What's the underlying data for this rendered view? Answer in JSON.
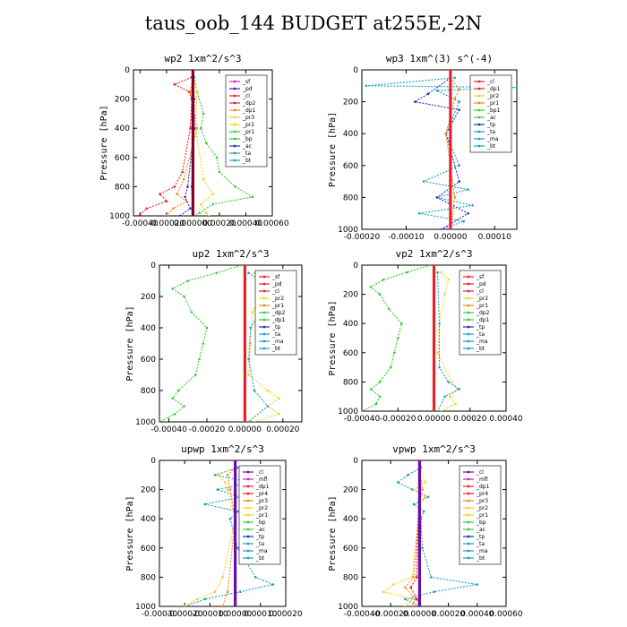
{
  "figure_title": "taus_oob_144  BUDGET at255E,-2N",
  "colors": {
    "magenta": "#cc22cc",
    "purple": "#6a0dad",
    "red": "#e8202a",
    "orange": "#f08a1c",
    "yellow": "#f5d020",
    "green": "#33cc33",
    "blue": "#2233bb",
    "cyan": "#1aa0c0",
    "black": "#111111",
    "dark": "#880022"
  },
  "chart_data": [
    {
      "type": "line",
      "title": "wp2   1xm^2/s^3",
      "ylabel": "Pressure [hPa]",
      "xlim": [
        -0.00045,
        0.0006
      ],
      "ylim": [
        1000,
        0
      ],
      "xticks": [
        -0.0004,
        -0.0002,
        0,
        0.0002,
        0.0004,
        0.0006
      ],
      "xtick_labels": [
        "-0.00040",
        "-0.00020",
        "0.000000",
        "0.00020",
        "0.00040",
        "0.00060"
      ],
      "yticks": [
        0,
        200,
        400,
        600,
        800,
        1000
      ],
      "legend": [
        "_sf",
        "_pd",
        "_cl",
        "_dp2",
        "_dp1",
        "_pr3",
        "_pr2",
        "_pr1",
        "_bp",
        "_ac",
        "_ta",
        "_bt"
      ],
      "legend_colors": [
        "magenta",
        "purple",
        "red",
        "red",
        "orange",
        "yellow",
        "yellow",
        "green",
        "green",
        "blue",
        "cyan",
        "cyan"
      ],
      "series": [
        {
          "name": "_pr1",
          "color": "green",
          "y": [
            50,
            150,
            300,
            400,
            500,
            600,
            700,
            800,
            870,
            920,
            980,
            1000
          ],
          "x": [
            1e-05,
            3e-05,
            8e-05,
            6e-05,
            0.0001,
            0.00018,
            0.0002,
            0.00032,
            0.00045,
            0.00015,
            5e-05,
            0
          ]
        },
        {
          "name": "_cl",
          "color": "red",
          "y": [
            50,
            100,
            150,
            200,
            400,
            700,
            800,
            850,
            900,
            950,
            990,
            1000
          ],
          "x": [
            -1e-05,
            -0.00014,
            -3e-05,
            -1e-05,
            -2e-05,
            -8e-05,
            -0.00014,
            -0.00025,
            -0.0002,
            -0.00035,
            -0.0004,
            -0.00042
          ]
        },
        {
          "name": "_dp1",
          "color": "orange",
          "y": [
            50,
            150,
            400,
            750,
            850,
            900,
            950,
            1000
          ],
          "x": [
            0,
            -2e-05,
            3e-05,
            -7e-05,
            -0.00012,
            -5e-05,
            -0.00015,
            -0.0002
          ]
        },
        {
          "name": "_pr2",
          "color": "yellow",
          "y": [
            50,
            150,
            400,
            750,
            850,
            920,
            980,
            1000
          ],
          "x": [
            0,
            3e-05,
            2e-05,
            8e-05,
            0.00015,
            6e-05,
            0.0001,
            0.00012
          ]
        },
        {
          "name": "_ac",
          "color": "blue",
          "y": [
            50,
            400,
            800,
            870,
            950,
            1000
          ],
          "x": [
            0,
            1e-05,
            -4e-05,
            -6e-05,
            -2e-05,
            -0.0001
          ]
        },
        {
          "name": "_pd",
          "color": "purple",
          "y": [
            0,
            200,
            400,
            600,
            800,
            1000
          ],
          "x": [
            0,
            1e-05,
            1e-05,
            0,
            -1e-05,
            0
          ]
        },
        {
          "name": "_bt",
          "color": "dark",
          "y": [
            0,
            1000
          ],
          "x": [
            0,
            0
          ]
        }
      ]
    },
    {
      "type": "line",
      "title": "wp3   1xm^(3) s^(-4)",
      "ylabel": "Pressure [hPa]",
      "xlim": [
        -0.0002,
        0.00015
      ],
      "ylim": [
        1000,
        0
      ],
      "xticks": [
        -0.0002,
        -0.0001,
        0,
        0.0001
      ],
      "xtick_labels": [
        "-0.00020",
        "-0.00010",
        "0.00000",
        "0.00010"
      ],
      "yticks": [
        0,
        200,
        400,
        600,
        800,
        1000
      ],
      "legend": [
        "_cl",
        "_dp1",
        "_pr2",
        "_pr1",
        "_bp1",
        "_ac",
        "_tp",
        "_ta",
        "_ma",
        "_bt"
      ],
      "legend_colors": [
        "red",
        "red",
        "yellow",
        "orange",
        "green",
        "green",
        "blue",
        "cyan",
        "cyan",
        "cyan"
      ],
      "series": [
        {
          "name": "_tp",
          "color": "cyan",
          "y": [
            50,
            100,
            110,
            130,
            200,
            400,
            600,
            700,
            750,
            800,
            850,
            900,
            950,
            1000
          ],
          "x": [
            1e-05,
            -0.00019,
            0.00015,
            -3e-05,
            2e-05,
            -1e-05,
            2e-05,
            -6e-05,
            4e-05,
            -3e-05,
            5e-05,
            -7e-05,
            3e-05,
            -2e-05
          ]
        },
        {
          "name": "_ac",
          "color": "blue",
          "y": [
            50,
            150,
            200,
            250,
            400,
            700,
            800,
            900,
            1000
          ],
          "x": [
            0,
            -5e-05,
            -8e-05,
            2e-05,
            -1e-05,
            2e-05,
            -3e-05,
            4e-05,
            -2e-05
          ]
        },
        {
          "name": "_pr1",
          "color": "orange",
          "y": [
            50,
            120,
            180,
            400,
            800,
            1000
          ],
          "x": [
            0,
            2e-05,
            1e-05,
            -1e-05,
            1e-05,
            0
          ]
        },
        {
          "name": "_cl",
          "color": "red",
          "y": [
            0,
            1000
          ],
          "x": [
            0,
            0
          ]
        }
      ]
    },
    {
      "type": "line",
      "title": "up2   1xm^2/s^3",
      "ylabel": "Pressure [hPa]",
      "xlim": [
        -0.00045,
        0.0003
      ],
      "ylim": [
        1000,
        0
      ],
      "xticks": [
        -0.0004,
        -0.0002,
        0,
        0.0002
      ],
      "xtick_labels": [
        "-0.00040",
        "-0.00020",
        "0.00000",
        "0.00020"
      ],
      "yticks": [
        0,
        200,
        400,
        600,
        800,
        1000
      ],
      "legend": [
        "_sf",
        "_pd",
        "_cl",
        "_pr2",
        "_pr1",
        "_dp2",
        "_dp1",
        "_tp",
        "_ta",
        "_ma",
        "_bt"
      ],
      "legend_colors": [
        "red",
        "red",
        "red",
        "yellow",
        "orange",
        "green",
        "green",
        "blue",
        "cyan",
        "cyan",
        "cyan"
      ],
      "series": [
        {
          "name": "_pr1",
          "color": "green",
          "y": [
            0,
            50,
            100,
            150,
            200,
            300,
            400,
            500,
            600,
            700,
            800,
            850,
            900,
            950,
            1000
          ],
          "x": [
            -2e-05,
            -0.00015,
            -0.0003,
            -0.00038,
            -0.00032,
            -0.00028,
            -0.0002,
            -0.00022,
            -0.00024,
            -0.00026,
            -0.00035,
            -0.00038,
            -0.00032,
            -0.00037,
            -0.00045
          ]
        },
        {
          "name": "_pr2",
          "color": "yellow",
          "y": [
            50,
            100,
            150,
            200,
            300,
            500,
            700,
            800,
            850,
            900,
            950,
            1000
          ],
          "x": [
            5e-05,
            0.0001,
            0.0001,
            8e-05,
            4e-05,
            3e-05,
            2e-05,
            0.00012,
            0.00018,
            0.00012,
            0.00018,
            5e-05
          ]
        },
        {
          "name": "_ta",
          "color": "cyan",
          "y": [
            50,
            150,
            200,
            250,
            300,
            400,
            600,
            800,
            900,
            1000
          ],
          "x": [
            2e-05,
            0.00015,
            0.00025,
            0.00012,
            8e-05,
            3e-05,
            2e-05,
            5e-05,
            0.00012,
            2e-05
          ]
        },
        {
          "name": "_cl",
          "color": "red",
          "y": [
            0,
            1000
          ],
          "x": [
            0,
            0
          ]
        }
      ]
    },
    {
      "type": "line",
      "title": "vp2   1xm^2/s^3",
      "ylabel": "Pressure [hPa]",
      "xlim": [
        -0.0004,
        0.0004
      ],
      "ylim": [
        1000,
        0
      ],
      "xticks": [
        -0.0004,
        -0.0002,
        0,
        0.0002,
        0.0004
      ],
      "xtick_labels": [
        "-0.00040",
        "-0.00020",
        "0.00000",
        "0.00020",
        "0.00040"
      ],
      "yticks": [
        0,
        200,
        400,
        600,
        800,
        1000
      ],
      "legend": [
        "_sf",
        "_pd",
        "_cl",
        "_pr2",
        "_pr1",
        "_dp2",
        "_dp1",
        "_tp",
        "_ta",
        "_ma",
        "_bt"
      ],
      "legend_colors": [
        "red",
        "red",
        "red",
        "yellow",
        "orange",
        "green",
        "green",
        "blue",
        "cyan",
        "cyan",
        "cyan"
      ],
      "series": [
        {
          "name": "_pr1",
          "color": "green",
          "y": [
            0,
            50,
            100,
            150,
            200,
            300,
            400,
            500,
            600,
            700,
            800,
            850,
            900,
            950,
            1000
          ],
          "x": [
            -2e-05,
            -0.00015,
            -0.00028,
            -0.00035,
            -0.0003,
            -0.00025,
            -0.00018,
            -0.0002,
            -0.00022,
            -0.00024,
            -0.0003,
            -0.00035,
            -0.0003,
            -0.00032,
            -0.0004
          ]
        },
        {
          "name": "_pr2",
          "color": "yellow",
          "y": [
            50,
            100,
            200,
            400,
            600,
            800,
            850,
            900,
            950,
            1000
          ],
          "x": [
            4e-05,
            8e-05,
            6e-05,
            3e-05,
            2e-05,
            0.0001,
            0.00013,
            9e-05,
            0.00012,
            4e-05
          ]
        },
        {
          "name": "_ta",
          "color": "cyan",
          "y": [
            50,
            400,
            700,
            800,
            850,
            900,
            1000
          ],
          "x": [
            2e-05,
            3e-05,
            3e-05,
            8e-05,
            0.00014,
            6e-05,
            2e-05
          ]
        },
        {
          "name": "_cl",
          "color": "red",
          "y": [
            0,
            1000
          ],
          "x": [
            0,
            0
          ]
        }
      ]
    },
    {
      "type": "line",
      "title": "upwp   1xm^2/s^3",
      "ylabel": "Pressure [hPa]",
      "xlim": [
        -0.0003,
        0.0002
      ],
      "ylim": [
        1000,
        0
      ],
      "xticks": [
        -0.0003,
        -0.0002,
        -0.0001,
        0,
        0.0001,
        0.0002
      ],
      "xtick_labels": [
        "-0.00030",
        "-0.00020",
        "-0.00010",
        "0.00000",
        "0.00010",
        "0.00020"
      ],
      "yticks": [
        0,
        200,
        400,
        600,
        800,
        1000
      ],
      "legend": [
        "_cl",
        "_mfl",
        "_dp1",
        "_pr4",
        "_pr3",
        "_pr2",
        "_pr1",
        "_bp",
        "_ac",
        "_tp",
        "_ta",
        "_ma",
        "_bt"
      ],
      "legend_colors": [
        "purple",
        "magenta",
        "red",
        "red",
        "orange",
        "yellow",
        "yellow",
        "green",
        "green",
        "blue",
        "cyan",
        "cyan",
        "cyan"
      ],
      "series": [
        {
          "name": "_tp",
          "color": "cyan",
          "y": [
            50,
            100,
            150,
            200,
            250,
            300,
            350,
            400,
            600,
            800,
            850,
            900,
            950,
            1000
          ],
          "x": [
            1e-05,
            -8e-05,
            6e-05,
            -7e-05,
            2e-05,
            -0.00012,
            1e-05,
            -2e-05,
            1e-05,
            8e-05,
            0.00015,
            2e-05,
            -0.00012,
            -0.0002
          ]
        },
        {
          "name": "_pr2",
          "color": "yellow",
          "y": [
            50,
            100,
            150,
            200,
            400,
            800,
            900,
            950,
            1000
          ],
          "x": [
            0,
            -7e-05,
            -4e-05,
            -3e-05,
            0,
            -5e-05,
            -8e-05,
            -0.00015,
            -0.0002
          ]
        },
        {
          "name": "_pr1",
          "color": "orange",
          "y": [
            50,
            100,
            200,
            400,
            900,
            1000
          ],
          "x": [
            0,
            -3e-05,
            -2e-05,
            0,
            -3e-05,
            -5e-05
          ]
        },
        {
          "name": "_cl",
          "color": "purple",
          "y": [
            0,
            1000
          ],
          "x": [
            0,
            0
          ]
        }
      ]
    },
    {
      "type": "line",
      "title": "vpwp   1xm^2/s^3",
      "ylabel": "Pressure [hPa]",
      "xlim": [
        -0.0004,
        0.0006
      ],
      "ylim": [
        1000,
        0
      ],
      "xticks": [
        -0.0004,
        -0.0002,
        0,
        0.0002,
        0.0004,
        0.0006
      ],
      "xtick_labels": [
        "-0.00040",
        "-0.00020",
        "0.00000",
        "0.00020",
        "0.00040",
        "0.00060"
      ],
      "yticks": [
        0,
        200,
        400,
        600,
        800,
        1000
      ],
      "legend": [
        "_cl",
        "_mfl",
        "_dp1",
        "_pr4",
        "_pr3",
        "_pr2",
        "_pr1",
        "_bp",
        "_ac",
        "_tp",
        "_ta",
        "_ma",
        "_bt"
      ],
      "legend_colors": [
        "purple",
        "magenta",
        "red",
        "red",
        "orange",
        "yellow",
        "yellow",
        "green",
        "green",
        "blue",
        "cyan",
        "cyan",
        "cyan"
      ],
      "series": [
        {
          "name": "_tp",
          "color": "cyan",
          "y": [
            50,
            100,
            150,
            200,
            250,
            300,
            350,
            400,
            600,
            800,
            850,
            900,
            950,
            1000
          ],
          "x": [
            1e-05,
            -8e-05,
            -0.00015,
            -5e-05,
            6e-05,
            -4e-05,
            3e-05,
            1e-05,
            2e-05,
            8e-05,
            0.0004,
            0.0001,
            -0.0001,
            0
          ]
        },
        {
          "name": "_pr2",
          "color": "yellow",
          "y": [
            50,
            150,
            200,
            250,
            300,
            800,
            850,
            900,
            950,
            1000
          ],
          "x": [
            0,
            4e-05,
            -4e-05,
            4e-05,
            0,
            -5e-05,
            -0.00018,
            -0.00025,
            -5e-05,
            -0.0001
          ]
        },
        {
          "name": "_pr1",
          "color": "orange",
          "y": [
            50,
            200,
            300,
            800,
            870,
            950,
            1000
          ],
          "x": [
            0,
            2e-05,
            0,
            -4e-05,
            -0.0001,
            -3e-05,
            -5e-05
          ]
        },
        {
          "name": "_dp1",
          "color": "red",
          "y": [
            50,
            800,
            870,
            950,
            1000
          ],
          "x": [
            0,
            -2e-05,
            -6e-05,
            -2e-05,
            0
          ]
        },
        {
          "name": "_cl",
          "color": "purple",
          "y": [
            0,
            1000
          ],
          "x": [
            0,
            0
          ]
        }
      ]
    }
  ]
}
